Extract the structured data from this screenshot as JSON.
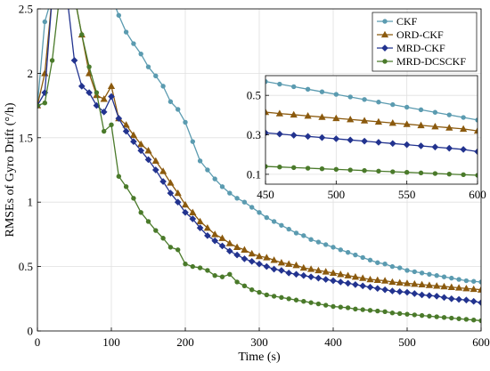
{
  "chart_data": [
    {
      "type": "line",
      "title": "",
      "xlabel": "Time (s)",
      "ylabel": "RMSEs of Gyro Drift (°/h)",
      "xlim": [
        0,
        600
      ],
      "ylim": [
        0,
        2.5
      ],
      "xticks": [
        0,
        100,
        200,
        300,
        400,
        500,
        600
      ],
      "yticks": [
        0,
        0.5,
        1,
        1.5,
        2,
        2.5
      ],
      "xtick_labels": [
        "0",
        "100",
        "200",
        "300",
        "400",
        "500",
        "600"
      ],
      "ytick_labels": [
        "0",
        "0.5",
        "1",
        "1.5",
        "2",
        "2.5"
      ],
      "grid": true,
      "legend_position": "top-right",
      "series": [
        {
          "name": "CKF",
          "color": "#5b9bb0",
          "marker": "circle",
          "x": [
            0,
            10,
            20,
            30,
            40,
            50,
            60,
            70,
            80,
            90,
            100,
            110,
            120,
            130,
            140,
            150,
            160,
            170,
            180,
            190,
            200,
            210,
            220,
            230,
            240,
            250,
            260,
            270,
            280,
            290,
            300,
            310,
            320,
            330,
            340,
            350,
            360,
            370,
            380,
            390,
            400,
            410,
            420,
            430,
            440,
            450,
            460,
            470,
            480,
            490,
            500,
            510,
            520,
            530,
            540,
            550,
            560,
            570,
            580,
            590,
            600
          ],
          "y": [
            1.75,
            2.4,
            2.6,
            2.6,
            2.6,
            2.6,
            2.6,
            2.6,
            2.6,
            2.6,
            2.6,
            2.45,
            2.32,
            2.23,
            2.15,
            2.05,
            1.98,
            1.9,
            1.78,
            1.72,
            1.62,
            1.47,
            1.32,
            1.25,
            1.18,
            1.12,
            1.07,
            1.03,
            1.0,
            0.96,
            0.92,
            0.88,
            0.85,
            0.82,
            0.79,
            0.76,
            0.74,
            0.71,
            0.69,
            0.67,
            0.65,
            0.63,
            0.61,
            0.59,
            0.57,
            0.55,
            0.53,
            0.52,
            0.5,
            0.49,
            0.47,
            0.46,
            0.45,
            0.44,
            0.43,
            0.42,
            0.41,
            0.4,
            0.39,
            0.385,
            0.38
          ]
        },
        {
          "name": "ORD-CKF",
          "color": "#8b5a0e",
          "marker": "triangle",
          "x": [
            0,
            10,
            20,
            30,
            40,
            50,
            60,
            70,
            80,
            90,
            100,
            110,
            120,
            130,
            140,
            150,
            160,
            170,
            180,
            190,
            200,
            210,
            220,
            230,
            240,
            250,
            260,
            270,
            280,
            290,
            300,
            310,
            320,
            330,
            340,
            350,
            360,
            370,
            380,
            390,
            400,
            410,
            420,
            430,
            440,
            450,
            460,
            470,
            480,
            490,
            500,
            510,
            520,
            530,
            540,
            550,
            560,
            570,
            580,
            590,
            600
          ],
          "y": [
            1.75,
            2.0,
            2.6,
            2.6,
            2.6,
            2.6,
            2.3,
            2.0,
            1.83,
            1.8,
            1.9,
            1.65,
            1.6,
            1.52,
            1.45,
            1.4,
            1.32,
            1.24,
            1.15,
            1.07,
            0.98,
            0.92,
            0.85,
            0.8,
            0.75,
            0.72,
            0.68,
            0.65,
            0.63,
            0.6,
            0.58,
            0.57,
            0.55,
            0.53,
            0.52,
            0.51,
            0.49,
            0.48,
            0.47,
            0.46,
            0.45,
            0.44,
            0.43,
            0.42,
            0.41,
            0.4,
            0.395,
            0.39,
            0.38,
            0.375,
            0.37,
            0.365,
            0.36,
            0.355,
            0.35,
            0.345,
            0.34,
            0.335,
            0.33,
            0.325,
            0.32
          ]
        },
        {
          "name": "MRD-CKF",
          "color": "#22338f",
          "marker": "diamond",
          "x": [
            0,
            10,
            20,
            30,
            40,
            50,
            60,
            70,
            80,
            90,
            100,
            110,
            120,
            130,
            140,
            150,
            160,
            170,
            180,
            190,
            200,
            210,
            220,
            230,
            240,
            250,
            260,
            270,
            280,
            290,
            300,
            310,
            320,
            330,
            340,
            350,
            360,
            370,
            380,
            390,
            400,
            410,
            420,
            430,
            440,
            450,
            460,
            470,
            480,
            490,
            500,
            510,
            520,
            530,
            540,
            550,
            560,
            570,
            580,
            590,
            600
          ],
          "y": [
            1.75,
            1.85,
            2.6,
            2.6,
            2.6,
            2.1,
            1.9,
            1.85,
            1.75,
            1.7,
            1.82,
            1.65,
            1.55,
            1.47,
            1.4,
            1.33,
            1.25,
            1.16,
            1.07,
            1.0,
            0.92,
            0.87,
            0.8,
            0.74,
            0.7,
            0.66,
            0.62,
            0.59,
            0.56,
            0.54,
            0.52,
            0.5,
            0.48,
            0.47,
            0.45,
            0.44,
            0.43,
            0.42,
            0.41,
            0.4,
            0.39,
            0.38,
            0.37,
            0.36,
            0.35,
            0.34,
            0.33,
            0.32,
            0.31,
            0.305,
            0.3,
            0.29,
            0.28,
            0.275,
            0.27,
            0.26,
            0.25,
            0.245,
            0.24,
            0.23,
            0.22
          ]
        },
        {
          "name": "MRD-DCSCKF",
          "color": "#4a7a2a",
          "marker": "circle",
          "x": [
            0,
            10,
            20,
            30,
            40,
            50,
            60,
            70,
            80,
            90,
            100,
            110,
            120,
            130,
            140,
            150,
            160,
            170,
            180,
            190,
            200,
            210,
            220,
            230,
            240,
            250,
            260,
            270,
            280,
            290,
            300,
            310,
            320,
            330,
            340,
            350,
            360,
            370,
            380,
            390,
            400,
            410,
            420,
            430,
            440,
            450,
            460,
            470,
            480,
            490,
            500,
            510,
            520,
            530,
            540,
            550,
            560,
            570,
            580,
            590,
            600
          ],
          "y": [
            1.75,
            1.77,
            2.1,
            2.6,
            2.6,
            2.6,
            2.3,
            2.05,
            1.85,
            1.55,
            1.6,
            1.2,
            1.12,
            1.03,
            0.92,
            0.85,
            0.78,
            0.72,
            0.65,
            0.63,
            0.52,
            0.5,
            0.49,
            0.47,
            0.43,
            0.42,
            0.44,
            0.38,
            0.35,
            0.32,
            0.3,
            0.28,
            0.27,
            0.26,
            0.25,
            0.24,
            0.23,
            0.22,
            0.21,
            0.2,
            0.19,
            0.185,
            0.18,
            0.17,
            0.165,
            0.16,
            0.155,
            0.15,
            0.14,
            0.135,
            0.13,
            0.125,
            0.12,
            0.115,
            0.11,
            0.105,
            0.1,
            0.095,
            0.09,
            0.085,
            0.08
          ]
        }
      ]
    },
    {
      "type": "line",
      "title": "",
      "xlim": [
        450,
        600
      ],
      "ylim": [
        0.05,
        0.6
      ],
      "xticks": [
        450,
        500,
        550,
        600
      ],
      "yticks": [
        0.1,
        0.3,
        0.5
      ],
      "xtick_labels": [
        "450",
        "500",
        "550",
        "600"
      ],
      "ytick_labels": [
        "0.1",
        "0.3",
        "0.5"
      ],
      "grid": true,
      "legend_position": "none",
      "series": [
        {
          "name": "CKF",
          "color": "#5b9bb0",
          "marker": "circle",
          "x": [
            450,
            460,
            470,
            480,
            490,
            500,
            510,
            520,
            530,
            540,
            550,
            560,
            570,
            580,
            590,
            600
          ],
          "y": [
            0.57,
            0.557,
            0.544,
            0.531,
            0.518,
            0.505,
            0.492,
            0.479,
            0.466,
            0.453,
            0.44,
            0.427,
            0.414,
            0.401,
            0.388,
            0.375
          ]
        },
        {
          "name": "ORD-CKF",
          "color": "#8b5a0e",
          "marker": "triangle",
          "x": [
            450,
            460,
            470,
            480,
            490,
            500,
            510,
            520,
            530,
            540,
            550,
            560,
            570,
            580,
            590,
            600
          ],
          "y": [
            0.415,
            0.408,
            0.402,
            0.396,
            0.39,
            0.384,
            0.378,
            0.372,
            0.366,
            0.36,
            0.354,
            0.348,
            0.342,
            0.336,
            0.33,
            0.32
          ]
        },
        {
          "name": "MRD-CKF",
          "color": "#22338f",
          "marker": "diamond",
          "x": [
            450,
            460,
            470,
            480,
            490,
            500,
            510,
            520,
            530,
            540,
            550,
            560,
            570,
            580,
            590,
            600
          ],
          "y": [
            0.31,
            0.304,
            0.298,
            0.292,
            0.286,
            0.28,
            0.274,
            0.268,
            0.262,
            0.256,
            0.25,
            0.244,
            0.238,
            0.232,
            0.226,
            0.215
          ]
        },
        {
          "name": "MRD-DCSCKF",
          "color": "#4a7a2a",
          "marker": "circle",
          "x": [
            450,
            460,
            470,
            480,
            490,
            500,
            510,
            520,
            530,
            540,
            550,
            560,
            570,
            580,
            590,
            600
          ],
          "y": [
            0.14,
            0.137,
            0.134,
            0.131,
            0.128,
            0.125,
            0.122,
            0.119,
            0.116,
            0.113,
            0.11,
            0.107,
            0.104,
            0.101,
            0.098,
            0.095
          ]
        }
      ]
    }
  ]
}
